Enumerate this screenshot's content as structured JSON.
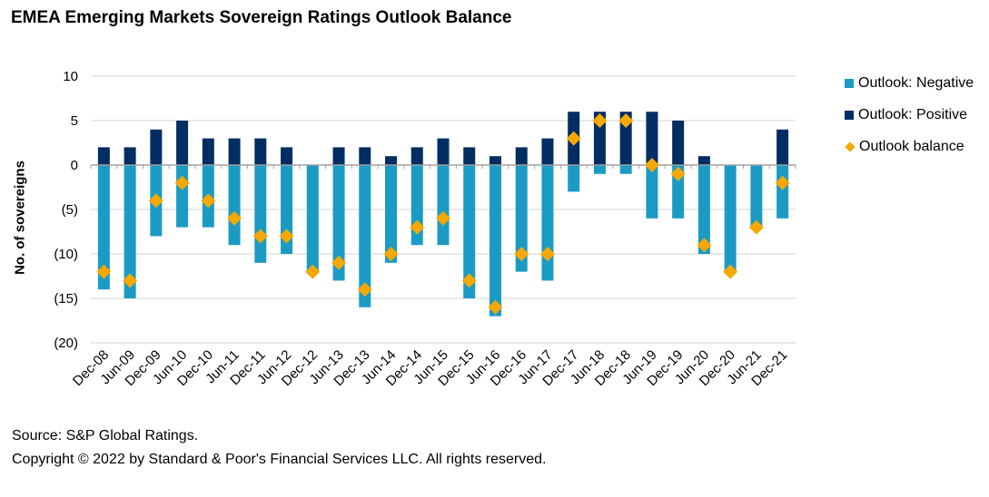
{
  "title": "EMEA Emerging Markets Sovereign Ratings Outlook Balance",
  "footer": {
    "source": "Source: S&P Global Ratings.",
    "copyright": "Copyright © 2022 by Standard & Poor's Financial Services LLC. All rights reserved."
  },
  "colors": {
    "negative": "#1b9bc4",
    "positive": "#002d62",
    "balance": "#f5a800"
  },
  "chart_data": {
    "type": "bar",
    "title": "EMEA Emerging Markets Sovereign Ratings Outlook Balance",
    "xlabel": "",
    "ylabel": "No. of sovereigns",
    "ylim": [
      -20,
      10
    ],
    "yticks": [
      10,
      5,
      0,
      -5,
      -10,
      -15,
      -20
    ],
    "ytick_labels": [
      "10",
      "5",
      "0",
      "(5)",
      "(10)",
      "(15)",
      "(20)"
    ],
    "grid": true,
    "legend_position": "right",
    "categories": [
      "Dec-08",
      "Jun-09",
      "Dec-09",
      "Jun-10",
      "Dec-10",
      "Jun-11",
      "Dec-11",
      "Jun-12",
      "Dec-12",
      "Jun-13",
      "Dec-13",
      "Jun-14",
      "Dec-14",
      "Jun-15",
      "Dec-15",
      "Jun-16",
      "Dec-16",
      "Jun-17",
      "Dec-17",
      "Jun-18",
      "Dec-18",
      "Jun-19",
      "Dec-19",
      "Jun-20",
      "Dec-20",
      "Jun-21",
      "Dec-21"
    ],
    "series": [
      {
        "name": "Outlook: Negative",
        "type": "bar",
        "values": [
          -14,
          -15,
          -8,
          -7,
          -7,
          -9,
          -11,
          -10,
          -12,
          -13,
          -16,
          -11,
          -9,
          -9,
          -15,
          -17,
          -12,
          -13,
          -3,
          -1,
          -1,
          -6,
          -6,
          -10,
          -12,
          -7,
          -6
        ]
      },
      {
        "name": "Outlook: Positive",
        "type": "bar",
        "values": [
          2,
          2,
          4,
          5,
          3,
          3,
          3,
          2,
          0,
          2,
          2,
          1,
          2,
          3,
          2,
          1,
          2,
          3,
          6,
          6,
          6,
          6,
          5,
          1,
          0,
          0,
          4
        ]
      },
      {
        "name": "Outlook balance",
        "type": "scatter",
        "marker": "diamond",
        "values": [
          -12,
          -13,
          -4,
          -2,
          -4,
          -6,
          -8,
          -8,
          -12,
          -11,
          -14,
          -10,
          -7,
          -6,
          -13,
          -16,
          -10,
          -10,
          3,
          5,
          5,
          0,
          -1,
          -9,
          -12,
          -7,
          -2
        ]
      }
    ]
  }
}
